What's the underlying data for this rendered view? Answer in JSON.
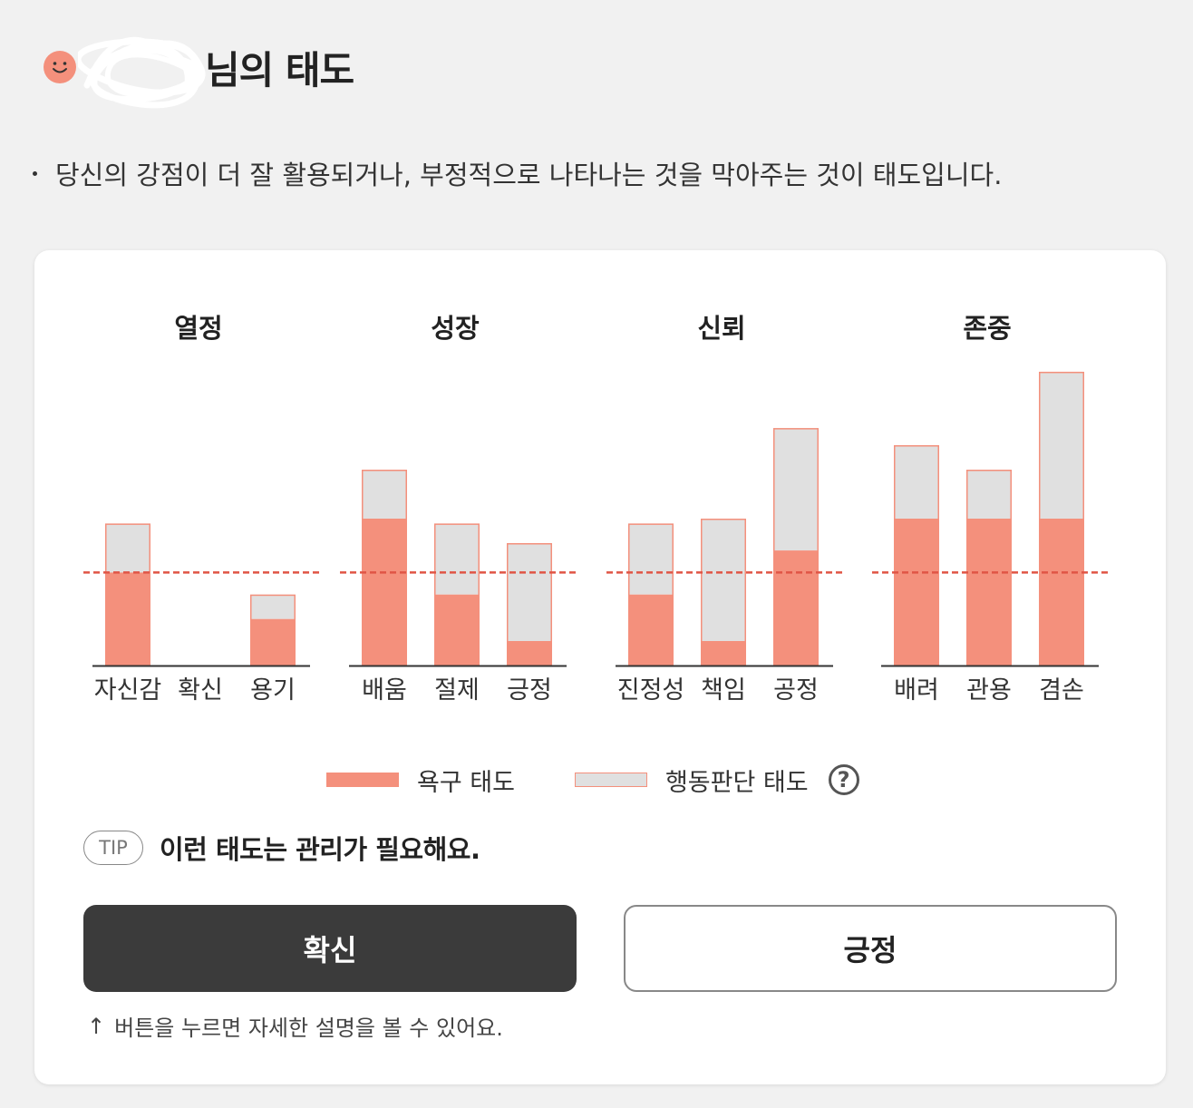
{
  "header": {
    "title_suffix": "님의 태도"
  },
  "description": "당신의 강점이 더 잘 활용되거나, 부정적으로 나타나는 것을 막아주는 것이 태도입니다.",
  "colors": {
    "desire": "#f4907c",
    "judgment": "#e0e0e0",
    "threshold": "#e05545",
    "dark_button": "#3b3b3b"
  },
  "chart_data": {
    "type": "bar",
    "stacked": true,
    "ylim": [
      0,
      100
    ],
    "threshold": 38,
    "series_names": [
      "욕구 태도",
      "행동판단 태도"
    ],
    "groups": [
      {
        "title": "열정",
        "categories": [
          "자신감",
          "확신",
          "용기"
        ],
        "desire": [
          38,
          0,
          19
        ],
        "judgment": [
          20,
          0,
          10
        ]
      },
      {
        "title": "성장",
        "categories": [
          "배움",
          "절제",
          "긍정"
        ],
        "desire": [
          60,
          29,
          10
        ],
        "judgment": [
          20,
          29,
          40
        ]
      },
      {
        "title": "신뢰",
        "categories": [
          "진정성",
          "책임",
          "공정"
        ],
        "desire": [
          29,
          10,
          47
        ],
        "judgment": [
          29,
          50,
          50
        ]
      },
      {
        "title": "존중",
        "categories": [
          "배려",
          "관용",
          "겸손"
        ],
        "desire": [
          60,
          60,
          60
        ],
        "judgment": [
          30,
          20,
          60
        ]
      }
    ]
  },
  "legend": {
    "desire_label": "욕구 태도",
    "judgment_label": "행동판단 태도",
    "help_icon": "question-circle-icon"
  },
  "tip": {
    "badge": "TIP",
    "text": "이런 태도는 관리가 필요해요."
  },
  "buttons": {
    "primary": "확신",
    "secondary": "긍정"
  },
  "hint": {
    "arrow": "↑",
    "text": "버튼을 누르면 자세한 설명을 볼 수 있어요."
  }
}
